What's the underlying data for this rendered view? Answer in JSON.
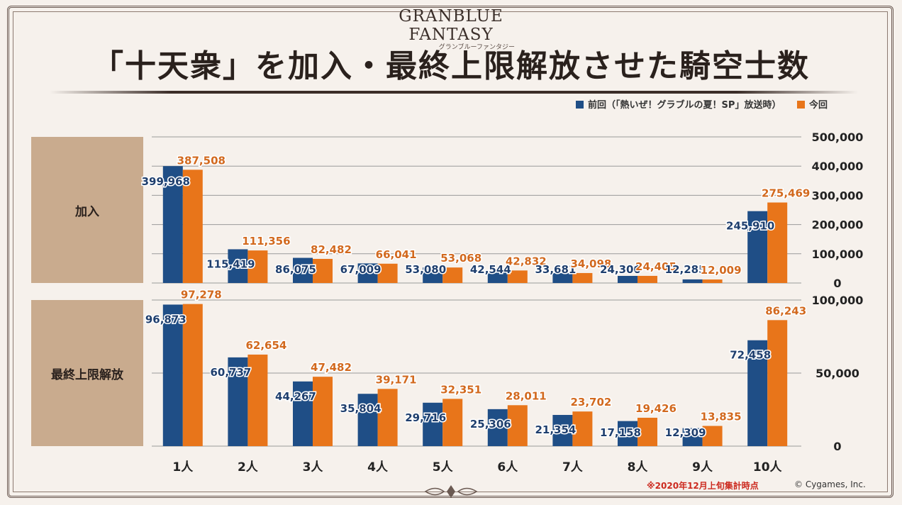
{
  "header": {
    "logo_main": "GRANBLUE FANTASY",
    "logo_sub": "グランブルーファンタジー",
    "title": "「十天衆」を加入・最終上限解放させた騎空士数"
  },
  "legend": {
    "items": [
      {
        "label": "前回（「熱いぜ！グラブルの夏！SP」放送時）",
        "color": "#1f4e86"
      },
      {
        "label": "今回",
        "color": "#e8751a"
      }
    ]
  },
  "footer": {
    "note": "※2020年12月上旬集計時点",
    "copyright": "© Cygames, Inc."
  },
  "chart_data": [
    {
      "type": "bar",
      "panel_label": "加入",
      "categories": [
        "1人",
        "2人",
        "3人",
        "4人",
        "5人",
        "6人",
        "7人",
        "8人",
        "9人",
        "10人"
      ],
      "series": [
        {
          "name": "前回（「熱いぜ！グラブルの夏！SP」放送時）",
          "values": [
            399968,
            115419,
            86075,
            67009,
            53080,
            42544,
            33681,
            24300,
            12285,
            245910
          ]
        },
        {
          "name": "今回",
          "values": [
            387508,
            111356,
            82482,
            66041,
            53068,
            42832,
            34098,
            24405,
            12009,
            275469
          ]
        }
      ],
      "ylim": [
        0,
        500000
      ],
      "yticks": [
        0,
        100000,
        200000,
        300000,
        400000,
        500000
      ],
      "ytick_labels": [
        "0",
        "100,000",
        "200,000",
        "300,000",
        "400,000",
        "500,000"
      ],
      "y_axis_side": "right",
      "grid": true
    },
    {
      "type": "bar",
      "panel_label": "最終上限解放",
      "categories": [
        "1人",
        "2人",
        "3人",
        "4人",
        "5人",
        "6人",
        "7人",
        "8人",
        "9人",
        "10人"
      ],
      "series": [
        {
          "name": "前回（「熱いぜ！グラブルの夏！SP」放送時）",
          "values": [
            96873,
            60737,
            44267,
            35804,
            29716,
            25306,
            21354,
            17158,
            12309,
            72458
          ]
        },
        {
          "name": "今回",
          "values": [
            97278,
            62654,
            47482,
            39171,
            32351,
            28011,
            23702,
            19426,
            13835,
            86243
          ]
        }
      ],
      "ylim": [
        0,
        100000
      ],
      "yticks": [
        0,
        50000,
        100000
      ],
      "ytick_labels": [
        "0",
        "50,000",
        "100,000"
      ],
      "y_axis_side": "right",
      "grid": true
    }
  ]
}
